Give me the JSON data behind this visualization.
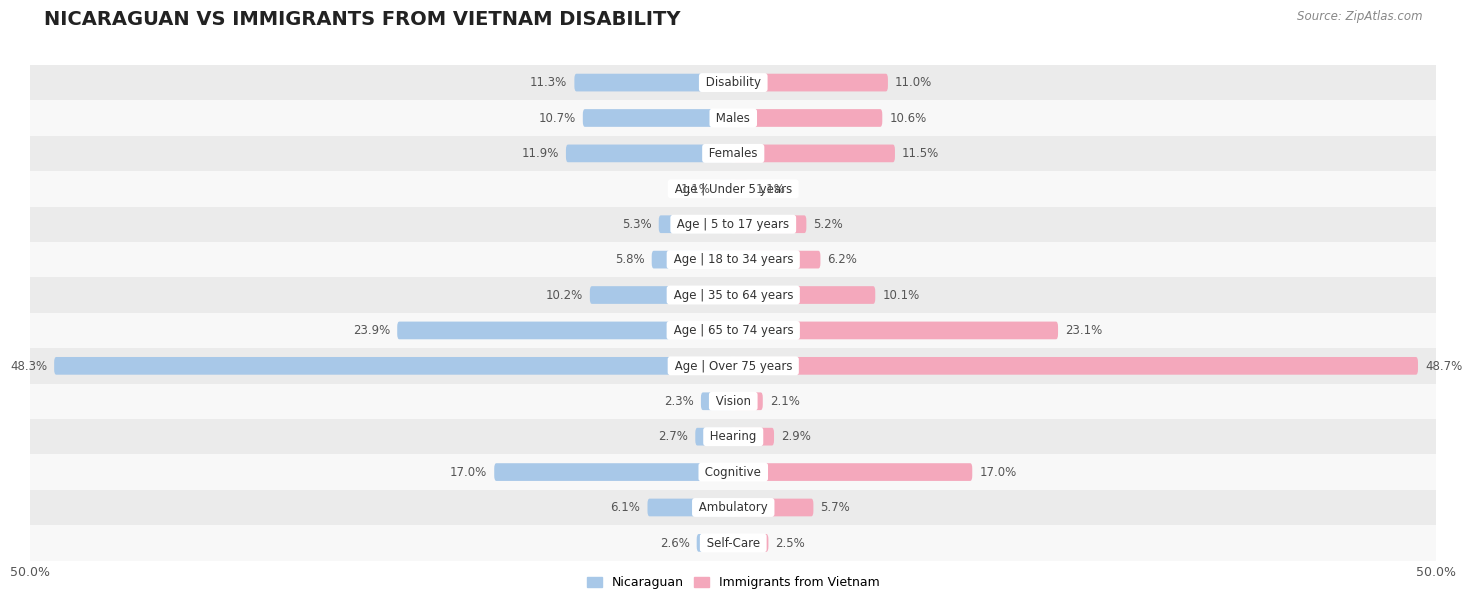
{
  "title": "NICARAGUAN VS IMMIGRANTS FROM VIETNAM DISABILITY",
  "source": "Source: ZipAtlas.com",
  "categories": [
    "Disability",
    "Males",
    "Females",
    "Age | Under 5 years",
    "Age | 5 to 17 years",
    "Age | 18 to 34 years",
    "Age | 35 to 64 years",
    "Age | 65 to 74 years",
    "Age | Over 75 years",
    "Vision",
    "Hearing",
    "Cognitive",
    "Ambulatory",
    "Self-Care"
  ],
  "nicaraguan": [
    11.3,
    10.7,
    11.9,
    1.1,
    5.3,
    5.8,
    10.2,
    23.9,
    48.3,
    2.3,
    2.7,
    17.0,
    6.1,
    2.6
  ],
  "vietnam": [
    11.0,
    10.6,
    11.5,
    1.1,
    5.2,
    6.2,
    10.1,
    23.1,
    48.7,
    2.1,
    2.9,
    17.0,
    5.7,
    2.5
  ],
  "max_val": 50.0,
  "bar_color_nicaraguan": "#a8c8e8",
  "bar_color_vietnam": "#f4a8bc",
  "bg_color_row_odd": "#ebebeb",
  "bg_color_row_even": "#f8f8f8",
  "bar_height": 0.5,
  "title_fontsize": 14,
  "label_fontsize": 8.5,
  "value_fontsize": 8.5,
  "legend_fontsize": 9
}
